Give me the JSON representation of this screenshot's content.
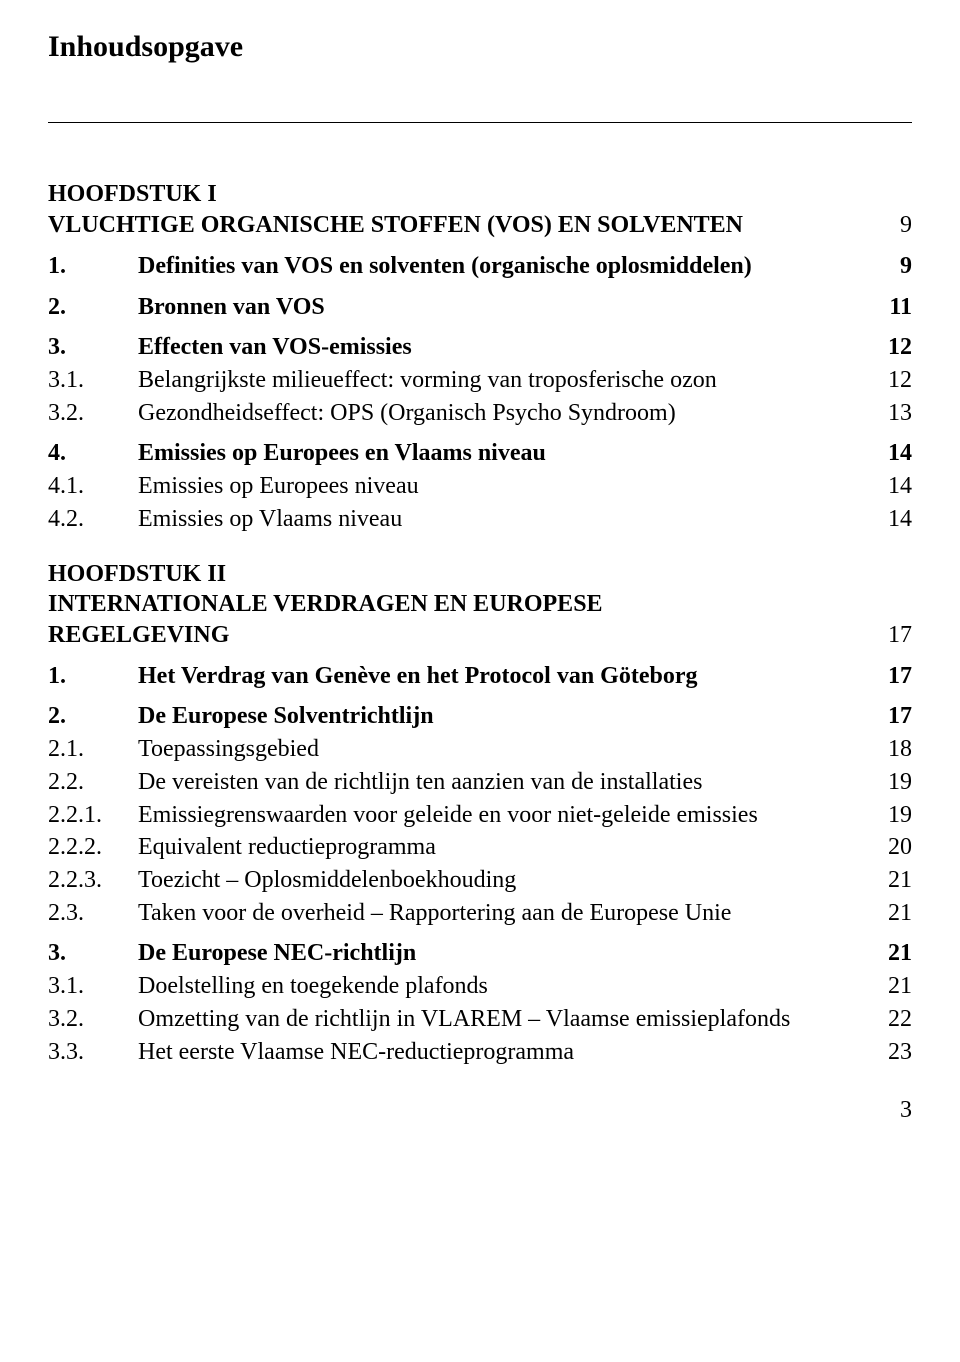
{
  "title": "Inhoudsopgave",
  "footer_page": "3",
  "chapter1": {
    "heading_line1": "HOOFDSTUK I",
    "heading_line2": "VLUCHTIGE ORGANISCHE STOFFEN (VOS) EN SOLVENTEN",
    "heading_page": "9",
    "r1": {
      "num": "1.",
      "text": "Definities van VOS en solventen (organische oplosmiddelen)",
      "page": "9"
    },
    "r2": {
      "num": "2.",
      "text": "Bronnen van VOS",
      "page": "11"
    },
    "r3": {
      "num": "3.",
      "text": "Effecten van VOS-emissies",
      "page": "12"
    },
    "r3_1": {
      "num": "3.1.",
      "text": "Belangrijkste milieueffect: vorming van troposferische ozon",
      "page": "12"
    },
    "r3_2": {
      "num": "3.2.",
      "text": "Gezondheidseffect: OPS (Organisch Psycho Syndroom)",
      "page": "13"
    },
    "r4": {
      "num": "4.",
      "text": "Emissies op Europees en Vlaams niveau",
      "page": "14"
    },
    "r4_1": {
      "num": "4.1.",
      "text": "Emissies op Europees niveau",
      "page": "14"
    },
    "r4_2": {
      "num": "4.2.",
      "text": "Emissies op Vlaams niveau",
      "page": "14"
    }
  },
  "chapter2": {
    "heading_line1": "HOOFDSTUK II",
    "heading_line2": "INTERNATIONALE VERDRAGEN EN EUROPESE",
    "heading_line3": "REGELGEVING",
    "heading_page": "17",
    "r1": {
      "num": "1.",
      "text": "Het Verdrag van Genève en het Protocol van Göteborg",
      "page": "17"
    },
    "r2": {
      "num": "2.",
      "text": "De Europese Solventrichtlijn",
      "page": "17"
    },
    "r2_1": {
      "num": "2.1.",
      "text": "Toepassingsgebied",
      "page": "18"
    },
    "r2_2": {
      "num": "2.2.",
      "text": "De vereisten van de richtlijn ten aanzien van de installaties",
      "page": "19"
    },
    "r2_2_1": {
      "num": "2.2.1.",
      "text": "Emissiegrenswaarden voor geleide en voor niet-geleide emissies",
      "page": "19"
    },
    "r2_2_2": {
      "num": "2.2.2.",
      "text": "Equivalent reductieprogramma",
      "page": "20"
    },
    "r2_2_3": {
      "num": "2.2.3.",
      "text": "Toezicht – Oplosmiddelenboekhouding",
      "page": "21"
    },
    "r2_3": {
      "num": "2.3.",
      "text": "Taken voor de overheid – Rapportering aan de Europese Unie",
      "page": "21"
    },
    "r3": {
      "num": "3.",
      "text": "De Europese NEC-richtlijn",
      "page": "21"
    },
    "r3_1": {
      "num": "3.1.",
      "text": "Doelstelling en toegekende plafonds",
      "page": "21"
    },
    "r3_2": {
      "num": "3.2.",
      "text": "Omzetting van de richtlijn in VLAREM – Vlaamse emissieplafonds",
      "page": "22"
    },
    "r3_3": {
      "num": "3.3.",
      "text": "Het eerste Vlaamse NEC-reductieprogramma",
      "page": "23"
    }
  }
}
